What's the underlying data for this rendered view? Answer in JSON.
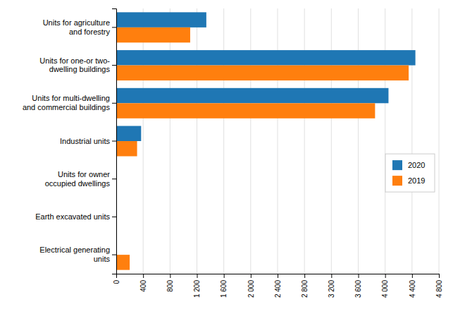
{
  "chart_data": {
    "type": "bar",
    "orientation": "horizontal",
    "categories": [
      "Units for agriculture\nand forestry",
      "Units for one-or two-\ndwelling buildings",
      "Units for multi-dwelling\nand commercial buildings",
      "Industrial units",
      "Units for owner\noccupied dwellings",
      "Earth excavated units",
      "Electrical generating\nunits"
    ],
    "series": [
      {
        "name": "2020",
        "values": [
          1340,
          4450,
          4050,
          370,
          10,
          5,
          8
        ]
      },
      {
        "name": "2019",
        "values": [
          1100,
          4350,
          3850,
          310,
          8,
          4,
          200
        ]
      }
    ],
    "xlim": [
      0,
      4800
    ],
    "xticks": [
      0,
      400,
      800,
      {
        "value": 1200,
        "label": "1 200"
      },
      {
        "value": 1600,
        "label": "1 600"
      },
      {
        "value": 2000,
        "label": "2 000"
      },
      {
        "value": 2400,
        "label": "2 400"
      },
      {
        "value": 2800,
        "label": "2 800"
      },
      {
        "value": 3200,
        "label": "3 200"
      },
      {
        "value": 3600,
        "label": "3 600"
      },
      {
        "value": 4000,
        "label": "4 000"
      },
      {
        "value": 4400,
        "label": "4 400"
      },
      {
        "value": 4800,
        "label": "4 800"
      }
    ],
    "grid": true,
    "legend": "right"
  }
}
